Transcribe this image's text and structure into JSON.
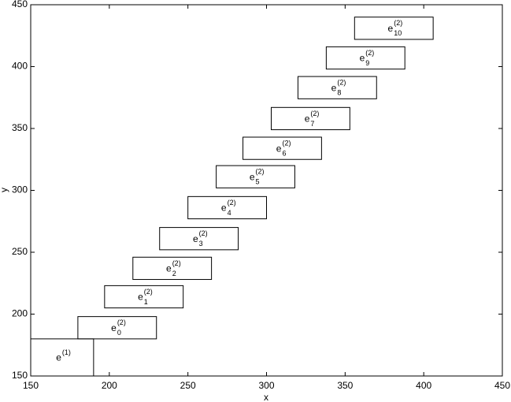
{
  "chart_data": {
    "type": "rect",
    "xlabel": "x",
    "ylabel": "y",
    "xlim": [
      150,
      450
    ],
    "ylim": [
      150,
      450
    ],
    "xticks": [
      150,
      200,
      250,
      300,
      350,
      400,
      450
    ],
    "yticks": [
      150,
      200,
      250,
      300,
      350,
      400,
      450
    ],
    "color": "#000000",
    "boxes": [
      {
        "base": "e",
        "sup": "(1)",
        "x": [
          150,
          190
        ],
        "y": [
          150,
          180
        ]
      },
      {
        "base": "e",
        "sup": "(2)",
        "sub": "0",
        "x": [
          180,
          230
        ],
        "y": [
          180,
          198
        ]
      },
      {
        "base": "e",
        "sup": "(2)",
        "sub": "1",
        "x": [
          197,
          247
        ],
        "y": [
          205,
          223
        ]
      },
      {
        "base": "e",
        "sup": "(2)",
        "sub": "2",
        "x": [
          215,
          265
        ],
        "y": [
          228,
          246
        ]
      },
      {
        "base": "e",
        "sup": "(2)",
        "sub": "3",
        "x": [
          232,
          282
        ],
        "y": [
          252,
          270
        ]
      },
      {
        "base": "e",
        "sup": "(2)",
        "sub": "4",
        "x": [
          250,
          300
        ],
        "y": [
          277,
          295
        ]
      },
      {
        "base": "e",
        "sup": "(2)",
        "sub": "5",
        "x": [
          268,
          318
        ],
        "y": [
          302,
          320
        ]
      },
      {
        "base": "e",
        "sup": "(2)",
        "sub": "6",
        "x": [
          285,
          335
        ],
        "y": [
          325,
          343
        ]
      },
      {
        "base": "e",
        "sup": "(2)",
        "sub": "7",
        "x": [
          303,
          353
        ],
        "y": [
          349,
          367
        ]
      },
      {
        "base": "e",
        "sup": "(2)",
        "sub": "8",
        "x": [
          320,
          370
        ],
        "y": [
          374,
          392
        ]
      },
      {
        "base": "e",
        "sup": "(2)",
        "sub": "9",
        "x": [
          338,
          388
        ],
        "y": [
          398,
          416
        ]
      },
      {
        "base": "e",
        "sup": "(2)",
        "sub": "10",
        "x": [
          356,
          406
        ],
        "y": [
          422,
          440
        ]
      }
    ]
  }
}
